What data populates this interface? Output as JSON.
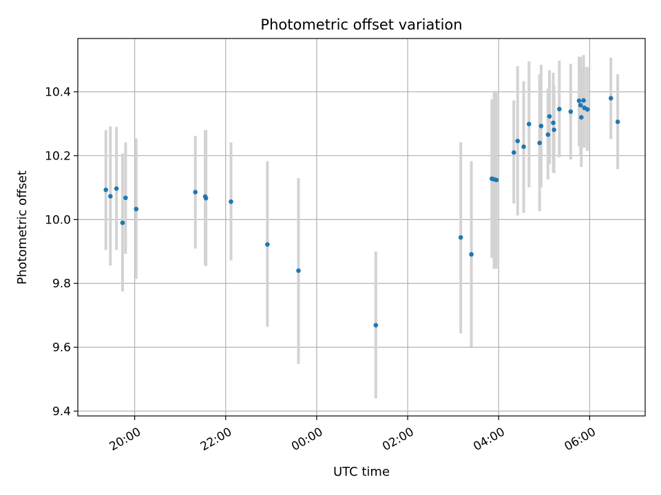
{
  "chart_data": {
    "type": "scatter",
    "title": "Photometric offset variation",
    "xlabel": "UTC time",
    "ylabel": "Photometric offset",
    "grid": true,
    "x_ticks": [
      "20:00",
      "22:00",
      "00:00",
      "02:00",
      "04:00",
      "06:00"
    ],
    "x_tick_hours": [
      20,
      22,
      24,
      26,
      28,
      30
    ],
    "y_ticks": [
      "9.4",
      "9.6",
      "9.8",
      "10.0",
      "10.2",
      "10.4"
    ],
    "y_tick_values": [
      9.4,
      9.6,
      9.8,
      10.0,
      10.2,
      10.4
    ],
    "ylim": [
      9.385,
      10.567
    ],
    "xlim_hours": [
      18.75,
      31.22
    ],
    "colors": {
      "point": "#1f77b4",
      "errorbar": "#d3d3d3",
      "grid": "#b0b0b0"
    },
    "points": [
      {
        "t": "19:22",
        "y": 10.093,
        "lo": 9.905,
        "hi": 10.28
      },
      {
        "t": "19:28",
        "y": 10.073,
        "lo": 9.856,
        "hi": 10.292
      },
      {
        "t": "19:36",
        "y": 10.097,
        "lo": 9.905,
        "hi": 10.29
      },
      {
        "t": "19:44",
        "y": 9.99,
        "lo": 9.775,
        "hi": 10.207
      },
      {
        "t": "19:48",
        "y": 10.068,
        "lo": 9.893,
        "hi": 10.242
      },
      {
        "t": "20:02",
        "y": 10.033,
        "lo": 9.814,
        "hi": 10.254
      },
      {
        "t": "21:20",
        "y": 10.086,
        "lo": 9.909,
        "hi": 10.262
      },
      {
        "t": "21:33",
        "y": 10.072,
        "lo": 9.858,
        "hi": 10.28
      },
      {
        "t": "21:34",
        "y": 10.067,
        "lo": 9.854,
        "hi": 10.28
      },
      {
        "t": "22:07",
        "y": 10.056,
        "lo": 9.872,
        "hi": 10.242
      },
      {
        "t": "22:55",
        "y": 9.922,
        "lo": 9.664,
        "hi": 10.183
      },
      {
        "t": "23:36",
        "y": 9.84,
        "lo": 9.548,
        "hi": 10.13
      },
      {
        "t": "01:18",
        "y": 9.669,
        "lo": 9.44,
        "hi": 9.9
      },
      {
        "t": "03:10",
        "y": 9.944,
        "lo": 9.643,
        "hi": 10.242
      },
      {
        "t": "03:24",
        "y": 9.891,
        "lo": 9.601,
        "hi": 10.183
      },
      {
        "t": "03:51",
        "y": 10.128,
        "lo": 9.88,
        "hi": 10.377
      },
      {
        "t": "03:54",
        "y": 10.126,
        "lo": 9.846,
        "hi": 10.398
      },
      {
        "t": "03:57",
        "y": 10.124,
        "lo": 9.846,
        "hi": 10.403
      },
      {
        "t": "04:20",
        "y": 10.21,
        "lo": 10.05,
        "hi": 10.373
      },
      {
        "t": "04:25",
        "y": 10.246,
        "lo": 10.013,
        "hi": 10.48
      },
      {
        "t": "04:33",
        "y": 10.228,
        "lo": 10.021,
        "hi": 10.433
      },
      {
        "t": "04:40",
        "y": 10.299,
        "lo": 10.101,
        "hi": 10.495
      },
      {
        "t": "04:54",
        "y": 10.24,
        "lo": 10.026,
        "hi": 10.455
      },
      {
        "t": "04:56",
        "y": 10.293,
        "lo": 10.101,
        "hi": 10.485
      },
      {
        "t": "05:05",
        "y": 10.266,
        "lo": 10.126,
        "hi": 10.41
      },
      {
        "t": "05:07",
        "y": 10.323,
        "lo": 10.175,
        "hi": 10.468
      },
      {
        "t": "05:12",
        "y": 10.303,
        "lo": 10.148,
        "hi": 10.46
      },
      {
        "t": "05:13",
        "y": 10.281,
        "lo": 10.145,
        "hi": 10.42
      },
      {
        "t": "05:20",
        "y": 10.346,
        "lo": 10.195,
        "hi": 10.498
      },
      {
        "t": "05:35",
        "y": 10.338,
        "lo": 10.188,
        "hi": 10.488
      },
      {
        "t": "05:46",
        "y": 10.372,
        "lo": 10.23,
        "hi": 10.51
      },
      {
        "t": "05:48",
        "y": 10.358,
        "lo": 10.2,
        "hi": 10.51
      },
      {
        "t": "05:49",
        "y": 10.32,
        "lo": 10.165,
        "hi": 10.472
      },
      {
        "t": "05:52",
        "y": 10.373,
        "lo": 10.23,
        "hi": 10.515
      },
      {
        "t": "05:53",
        "y": 10.35,
        "lo": 10.225,
        "hi": 10.478
      },
      {
        "t": "05:57",
        "y": 10.345,
        "lo": 10.215,
        "hi": 10.478
      },
      {
        "t": "06:28",
        "y": 10.38,
        "lo": 10.252,
        "hi": 10.507
      },
      {
        "t": "06:37",
        "y": 10.306,
        "lo": 10.158,
        "hi": 10.455
      }
    ]
  }
}
